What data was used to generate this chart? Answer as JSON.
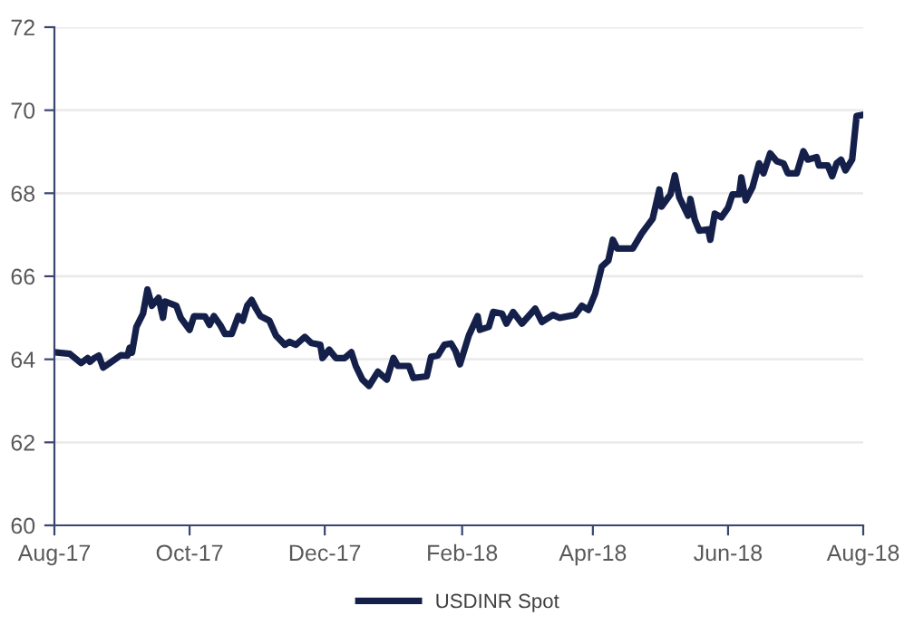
{
  "chart_data": {
    "type": "line",
    "x": [
      "2017-08-01",
      "2017-08-08",
      "2017-08-13",
      "2017-08-16",
      "2017-08-17",
      "2017-08-19",
      "2017-08-21",
      "2017-08-23",
      "2017-08-26",
      "2017-08-31",
      "2017-09-03",
      "2017-09-04",
      "2017-09-05",
      "2017-09-07",
      "2017-09-10",
      "2017-09-12",
      "2017-09-14",
      "2017-09-17",
      "2017-09-19",
      "2017-09-20",
      "2017-09-25",
      "2017-09-27",
      "2017-10-01",
      "2017-10-03",
      "2017-10-08",
      "2017-10-10",
      "2017-10-12",
      "2017-10-15",
      "2017-10-17",
      "2017-10-20",
      "2017-10-23",
      "2017-10-25",
      "2017-10-27",
      "2017-10-29",
      "2017-10-31",
      "2017-11-02",
      "2017-11-06",
      "2017-11-09",
      "2017-11-13",
      "2017-11-15",
      "2017-11-18",
      "2017-11-22",
      "2017-11-25",
      "2017-11-29",
      "2017-11-30",
      "2017-12-03",
      "2017-12-06",
      "2017-12-10",
      "2017-12-13",
      "2017-12-15",
      "2017-12-18",
      "2017-12-21",
      "2017-12-25",
      "2017-12-29",
      "2018-01-01",
      "2018-01-03",
      "2018-01-08",
      "2018-01-10",
      "2018-01-16",
      "2018-01-18",
      "2018-01-21",
      "2018-01-24",
      "2018-01-27",
      "2018-01-29",
      "2018-01-31",
      "2018-02-04",
      "2018-02-08",
      "2018-02-09",
      "2018-02-13",
      "2018-02-15",
      "2018-02-19",
      "2018-02-21",
      "2018-02-24",
      "2018-02-28",
      "2018-03-06",
      "2018-03-09",
      "2018-03-14",
      "2018-03-17",
      "2018-03-24",
      "2018-03-27",
      "2018-03-30",
      "2018-04-02",
      "2018-04-05",
      "2018-04-08",
      "2018-04-10",
      "2018-04-12",
      "2018-04-19",
      "2018-04-23",
      "2018-04-28",
      "2018-05-01",
      "2018-05-02",
      "2018-05-06",
      "2018-05-08",
      "2018-05-10",
      "2018-05-14",
      "2018-05-15",
      "2018-05-17",
      "2018-05-19",
      "2018-05-23",
      "2018-05-24",
      "2018-05-26",
      "2018-05-29",
      "2018-06-01",
      "2018-06-03",
      "2018-06-06",
      "2018-06-07",
      "2018-06-09",
      "2018-06-12",
      "2018-06-15",
      "2018-06-17",
      "2018-06-20",
      "2018-06-23",
      "2018-06-26",
      "2018-06-28",
      "2018-07-02",
      "2018-07-05",
      "2018-07-07",
      "2018-07-11",
      "2018-07-12",
      "2018-07-16",
      "2018-07-18",
      "2018-07-20",
      "2018-07-22",
      "2018-07-24",
      "2018-07-27",
      "2018-07-29",
      "2018-07-31"
    ],
    "series": [
      {
        "name": "USDINR Spot",
        "color": "#14204a",
        "values": [
          64.17,
          64.13,
          63.91,
          64.03,
          63.94,
          64.03,
          64.09,
          63.8,
          63.91,
          64.1,
          64.09,
          64.28,
          64.16,
          64.78,
          65.1,
          65.68,
          65.29,
          65.48,
          65.0,
          65.39,
          65.29,
          65.0,
          64.71,
          65.04,
          65.03,
          64.83,
          65.04,
          64.81,
          64.61,
          64.61,
          65.04,
          64.93,
          65.29,
          65.43,
          65.22,
          65.04,
          64.93,
          64.57,
          64.35,
          64.42,
          64.35,
          64.54,
          64.39,
          64.35,
          64.03,
          64.23,
          64.03,
          64.03,
          64.17,
          63.84,
          63.51,
          63.36,
          63.7,
          63.51,
          64.03,
          63.84,
          63.84,
          63.55,
          63.59,
          64.06,
          64.09,
          64.35,
          64.38,
          64.2,
          63.88,
          64.57,
          65.04,
          64.71,
          64.78,
          65.14,
          65.1,
          64.86,
          65.14,
          64.86,
          65.22,
          64.9,
          65.07,
          65.0,
          65.07,
          65.29,
          65.19,
          65.58,
          66.23,
          66.38,
          66.88,
          66.67,
          66.67,
          67.03,
          67.39,
          68.09,
          67.68,
          67.97,
          68.43,
          67.9,
          67.46,
          67.86,
          67.36,
          67.1,
          67.13,
          66.88,
          67.51,
          67.42,
          67.65,
          67.97,
          67.97,
          68.38,
          67.83,
          68.14,
          68.72,
          68.48,
          68.96,
          68.77,
          68.72,
          68.48,
          68.48,
          69.01,
          68.81,
          68.87,
          68.67,
          68.67,
          68.41,
          68.72,
          68.81,
          68.55,
          68.81,
          69.86,
          69.88
        ]
      }
    ],
    "xlim": [
      "2017-08-01",
      "2018-08-01"
    ],
    "xticks": [
      {
        "value": "2017-08-01",
        "label": "Aug-17"
      },
      {
        "value": "2017-10-01",
        "label": "Oct-17"
      },
      {
        "value": "2017-12-01",
        "label": "Dec-17"
      },
      {
        "value": "2018-02-01",
        "label": "Feb-18"
      },
      {
        "value": "2018-04-01",
        "label": "Apr-18"
      },
      {
        "value": "2018-06-01",
        "label": "Jun-18"
      },
      {
        "value": "2018-08-01",
        "label": "Aug-18"
      }
    ],
    "ylim": [
      60,
      72
    ],
    "yticks": [
      60,
      62,
      64,
      66,
      68,
      70,
      72
    ],
    "grid": "y",
    "legend": "bottom",
    "marker": "none",
    "line_style": "solid"
  }
}
